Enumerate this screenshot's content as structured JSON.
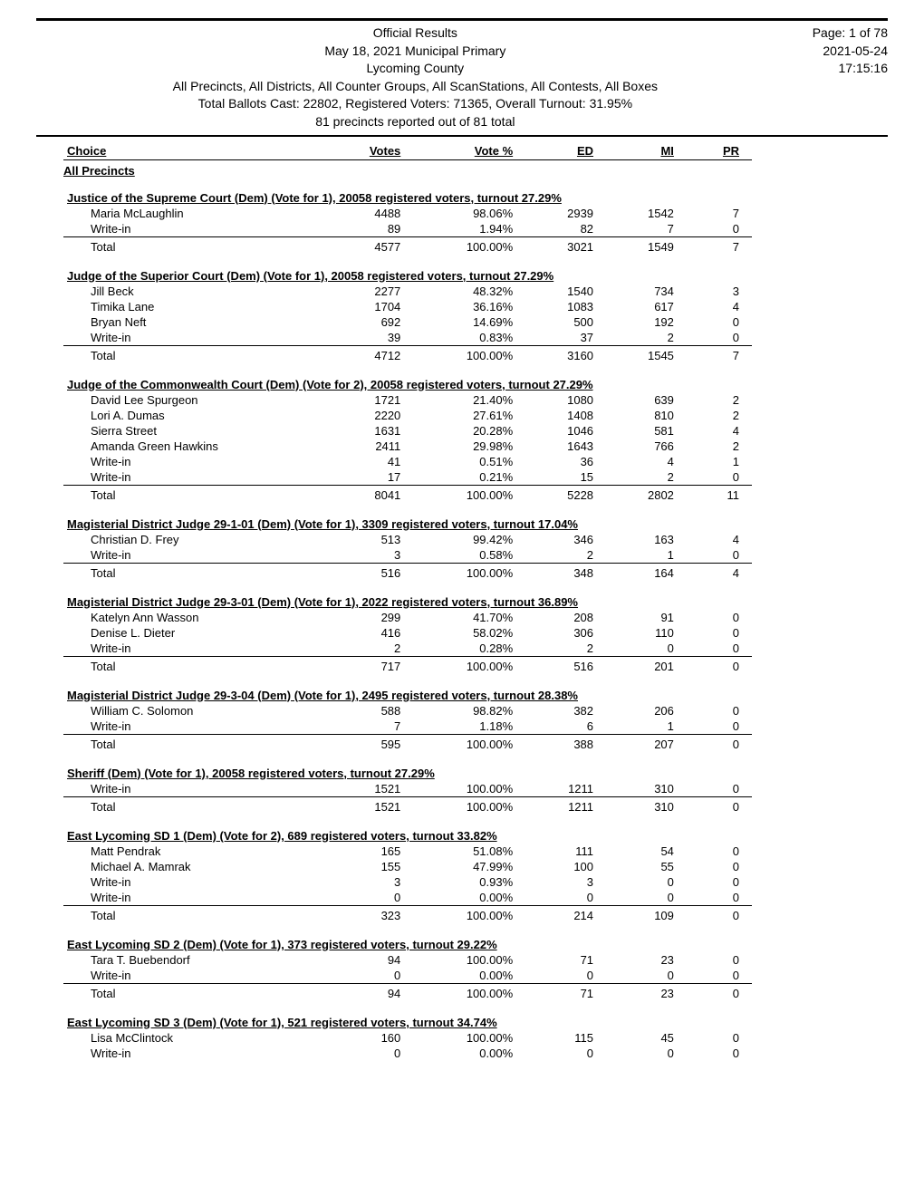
{
  "header": {
    "title": "Official Results",
    "election": "May 18, 2021 Municipal Primary",
    "county": "Lycoming County",
    "scope": "All Precincts, All Districts, All Counter Groups, All ScanStations, All Contests, All Boxes",
    "totals": "Total Ballots Cast: 22802, Registered Voters: 71365, Overall Turnout: 31.95%",
    "precincts": "81 precincts reported out of 81 total",
    "page": "Page: 1 of 78",
    "date": "2021-05-24",
    "time": "17:15:16"
  },
  "columns": {
    "choice": "Choice",
    "votes": "Votes",
    "pct": "Vote %",
    "ed": "ED",
    "mi": "MI",
    "pr": "PR"
  },
  "section_label": "All Precincts",
  "contests": [
    {
      "title": "Justice of the Supreme Court (Dem) (Vote for 1), 20058 registered voters, turnout 27.29%",
      "rows": [
        {
          "choice": "Maria McLaughlin",
          "votes": "4488",
          "pct": "98.06%",
          "ed": "2939",
          "mi": "1542",
          "pr": "7"
        },
        {
          "choice": "Write-in",
          "votes": "89",
          "pct": "1.94%",
          "ed": "82",
          "mi": "7",
          "pr": "0"
        }
      ],
      "total": {
        "choice": "Total",
        "votes": "4577",
        "pct": "100.00%",
        "ed": "3021",
        "mi": "1549",
        "pr": "7"
      }
    },
    {
      "title": "Judge of the Superior Court (Dem) (Vote for 1), 20058 registered voters, turnout 27.29%",
      "rows": [
        {
          "choice": "Jill Beck",
          "votes": "2277",
          "pct": "48.32%",
          "ed": "1540",
          "mi": "734",
          "pr": "3"
        },
        {
          "choice": "Timika Lane",
          "votes": "1704",
          "pct": "36.16%",
          "ed": "1083",
          "mi": "617",
          "pr": "4"
        },
        {
          "choice": "Bryan Neft",
          "votes": "692",
          "pct": "14.69%",
          "ed": "500",
          "mi": "192",
          "pr": "0"
        },
        {
          "choice": "Write-in",
          "votes": "39",
          "pct": "0.83%",
          "ed": "37",
          "mi": "2",
          "pr": "0"
        }
      ],
      "total": {
        "choice": "Total",
        "votes": "4712",
        "pct": "100.00%",
        "ed": "3160",
        "mi": "1545",
        "pr": "7"
      }
    },
    {
      "title": "Judge of the Commonwealth Court (Dem) (Vote for 2), 20058 registered voters, turnout 27.29%",
      "rows": [
        {
          "choice": "David Lee Spurgeon",
          "votes": "1721",
          "pct": "21.40%",
          "ed": "1080",
          "mi": "639",
          "pr": "2"
        },
        {
          "choice": "Lori A. Dumas",
          "votes": "2220",
          "pct": "27.61%",
          "ed": "1408",
          "mi": "810",
          "pr": "2"
        },
        {
          "choice": "Sierra Street",
          "votes": "1631",
          "pct": "20.28%",
          "ed": "1046",
          "mi": "581",
          "pr": "4"
        },
        {
          "choice": "Amanda Green Hawkins",
          "votes": "2411",
          "pct": "29.98%",
          "ed": "1643",
          "mi": "766",
          "pr": "2"
        },
        {
          "choice": "Write-in",
          "votes": "41",
          "pct": "0.51%",
          "ed": "36",
          "mi": "4",
          "pr": "1"
        },
        {
          "choice": "Write-in",
          "votes": "17",
          "pct": "0.21%",
          "ed": "15",
          "mi": "2",
          "pr": "0"
        }
      ],
      "total": {
        "choice": "Total",
        "votes": "8041",
        "pct": "100.00%",
        "ed": "5228",
        "mi": "2802",
        "pr": "11"
      }
    },
    {
      "title": "Magisterial District Judge 29-1-01 (Dem) (Vote for 1), 3309 registered voters, turnout 17.04%",
      "rows": [
        {
          "choice": "Christian D. Frey",
          "votes": "513",
          "pct": "99.42%",
          "ed": "346",
          "mi": "163",
          "pr": "4"
        },
        {
          "choice": "Write-in",
          "votes": "3",
          "pct": "0.58%",
          "ed": "2",
          "mi": "1",
          "pr": "0"
        }
      ],
      "total": {
        "choice": "Total",
        "votes": "516",
        "pct": "100.00%",
        "ed": "348",
        "mi": "164",
        "pr": "4"
      }
    },
    {
      "title": "Magisterial District Judge 29-3-01 (Dem) (Vote for 1), 2022 registered voters, turnout 36.89%",
      "rows": [
        {
          "choice": "Katelyn Ann Wasson",
          "votes": "299",
          "pct": "41.70%",
          "ed": "208",
          "mi": "91",
          "pr": "0"
        },
        {
          "choice": "Denise L. Dieter",
          "votes": "416",
          "pct": "58.02%",
          "ed": "306",
          "mi": "110",
          "pr": "0"
        },
        {
          "choice": "Write-in",
          "votes": "2",
          "pct": "0.28%",
          "ed": "2",
          "mi": "0",
          "pr": "0"
        }
      ],
      "total": {
        "choice": "Total",
        "votes": "717",
        "pct": "100.00%",
        "ed": "516",
        "mi": "201",
        "pr": "0"
      }
    },
    {
      "title": "Magisterial District Judge 29-3-04 (Dem) (Vote for 1), 2495 registered voters, turnout 28.38%",
      "rows": [
        {
          "choice": "William C. Solomon",
          "votes": "588",
          "pct": "98.82%",
          "ed": "382",
          "mi": "206",
          "pr": "0"
        },
        {
          "choice": "Write-in",
          "votes": "7",
          "pct": "1.18%",
          "ed": "6",
          "mi": "1",
          "pr": "0"
        }
      ],
      "total": {
        "choice": "Total",
        "votes": "595",
        "pct": "100.00%",
        "ed": "388",
        "mi": "207",
        "pr": "0"
      }
    },
    {
      "title": "Sheriff (Dem) (Vote for 1), 20058 registered voters, turnout 27.29%",
      "rows": [
        {
          "choice": "Write-in",
          "votes": "1521",
          "pct": "100.00%",
          "ed": "1211",
          "mi": "310",
          "pr": "0"
        }
      ],
      "total": {
        "choice": "Total",
        "votes": "1521",
        "pct": "100.00%",
        "ed": "1211",
        "mi": "310",
        "pr": "0"
      }
    },
    {
      "title": "East Lycoming SD 1 (Dem) (Vote for 2), 689 registered voters, turnout 33.82%",
      "rows": [
        {
          "choice": "Matt Pendrak",
          "votes": "165",
          "pct": "51.08%",
          "ed": "111",
          "mi": "54",
          "pr": "0"
        },
        {
          "choice": "Michael A. Mamrak",
          "votes": "155",
          "pct": "47.99%",
          "ed": "100",
          "mi": "55",
          "pr": "0"
        },
        {
          "choice": "Write-in",
          "votes": "3",
          "pct": "0.93%",
          "ed": "3",
          "mi": "0",
          "pr": "0"
        },
        {
          "choice": "Write-in",
          "votes": "0",
          "pct": "0.00%",
          "ed": "0",
          "mi": "0",
          "pr": "0"
        }
      ],
      "total": {
        "choice": "Total",
        "votes": "323",
        "pct": "100.00%",
        "ed": "214",
        "mi": "109",
        "pr": "0"
      }
    },
    {
      "title": "East Lycoming SD 2 (Dem) (Vote for 1), 373 registered voters, turnout 29.22%",
      "rows": [
        {
          "choice": "Tara T. Buebendorf",
          "votes": "94",
          "pct": "100.00%",
          "ed": "71",
          "mi": "23",
          "pr": "0"
        },
        {
          "choice": "Write-in",
          "votes": "0",
          "pct": "0.00%",
          "ed": "0",
          "mi": "0",
          "pr": "0"
        }
      ],
      "total": {
        "choice": "Total",
        "votes": "94",
        "pct": "100.00%",
        "ed": "71",
        "mi": "23",
        "pr": "0"
      }
    },
    {
      "title": "East Lycoming SD 3 (Dem) (Vote for 1), 521 registered voters, turnout 34.74%",
      "rows": [
        {
          "choice": "Lisa McClintock",
          "votes": "160",
          "pct": "100.00%",
          "ed": "115",
          "mi": "45",
          "pr": "0"
        },
        {
          "choice": "Write-in",
          "votes": "0",
          "pct": "0.00%",
          "ed": "0",
          "mi": "0",
          "pr": "0"
        }
      ],
      "total": null
    }
  ]
}
